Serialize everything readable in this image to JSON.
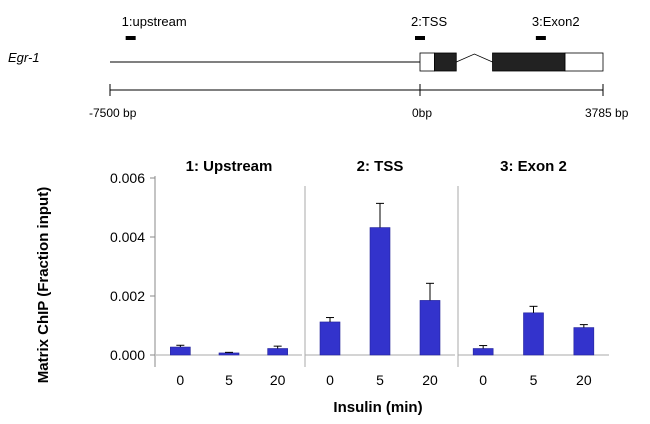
{
  "gene_map": {
    "gene_name": "Egr-1",
    "regions": [
      {
        "id": "upstream",
        "label": "1:upstream",
        "position_bp": -7000
      },
      {
        "id": "tss",
        "label": "2:TSS",
        "position_bp": 0
      },
      {
        "id": "exon2",
        "label": "3:Exon2",
        "position_bp": 2500
      }
    ],
    "scale": {
      "start_label": "-7500 bp",
      "zero_label": "0bp",
      "end_label": "3785 bp",
      "start_bp": -7500,
      "end_bp": 3785
    },
    "exons_bp": [
      {
        "start": 0,
        "end": 300,
        "fill": "#ffffff"
      },
      {
        "start": 300,
        "end": 750,
        "fill": "#222222"
      },
      {
        "start": 1500,
        "end": 3000,
        "fill": "#222222"
      },
      {
        "start": 3000,
        "end": 3785,
        "fill": "#ffffff"
      }
    ],
    "intron_bp": [
      750,
      1500
    ]
  },
  "chart_data": {
    "type": "bar",
    "ylabel": "Matrix ChIP (Fraction input)",
    "xlabel": "Insulin  (min)",
    "ylim": [
      0,
      0.006
    ],
    "yticks": [
      "0.000",
      "0.002",
      "0.004",
      "0.006"
    ],
    "ytick_values": [
      0,
      0.002,
      0.004,
      0.006
    ],
    "bar_color": "#3333cc",
    "error_bars": true,
    "panels": [
      {
        "title": "1: Upstream",
        "categories": [
          "0",
          "5",
          "20"
        ],
        "values": [
          0.00027,
          7e-05,
          0.00022
        ],
        "errors": [
          6e-05,
          2e-05,
          8e-05
        ]
      },
      {
        "title": "2: TSS",
        "categories": [
          "0",
          "5",
          "20"
        ],
        "values": [
          0.00112,
          0.00432,
          0.00185
        ],
        "errors": [
          0.00015,
          0.00082,
          0.00058
        ]
      },
      {
        "title": "3: Exon 2",
        "categories": [
          "0",
          "5",
          "20"
        ],
        "values": [
          0.00022,
          0.00143,
          0.00093
        ],
        "errors": [
          0.0001,
          0.00022,
          0.0001
        ]
      }
    ]
  }
}
